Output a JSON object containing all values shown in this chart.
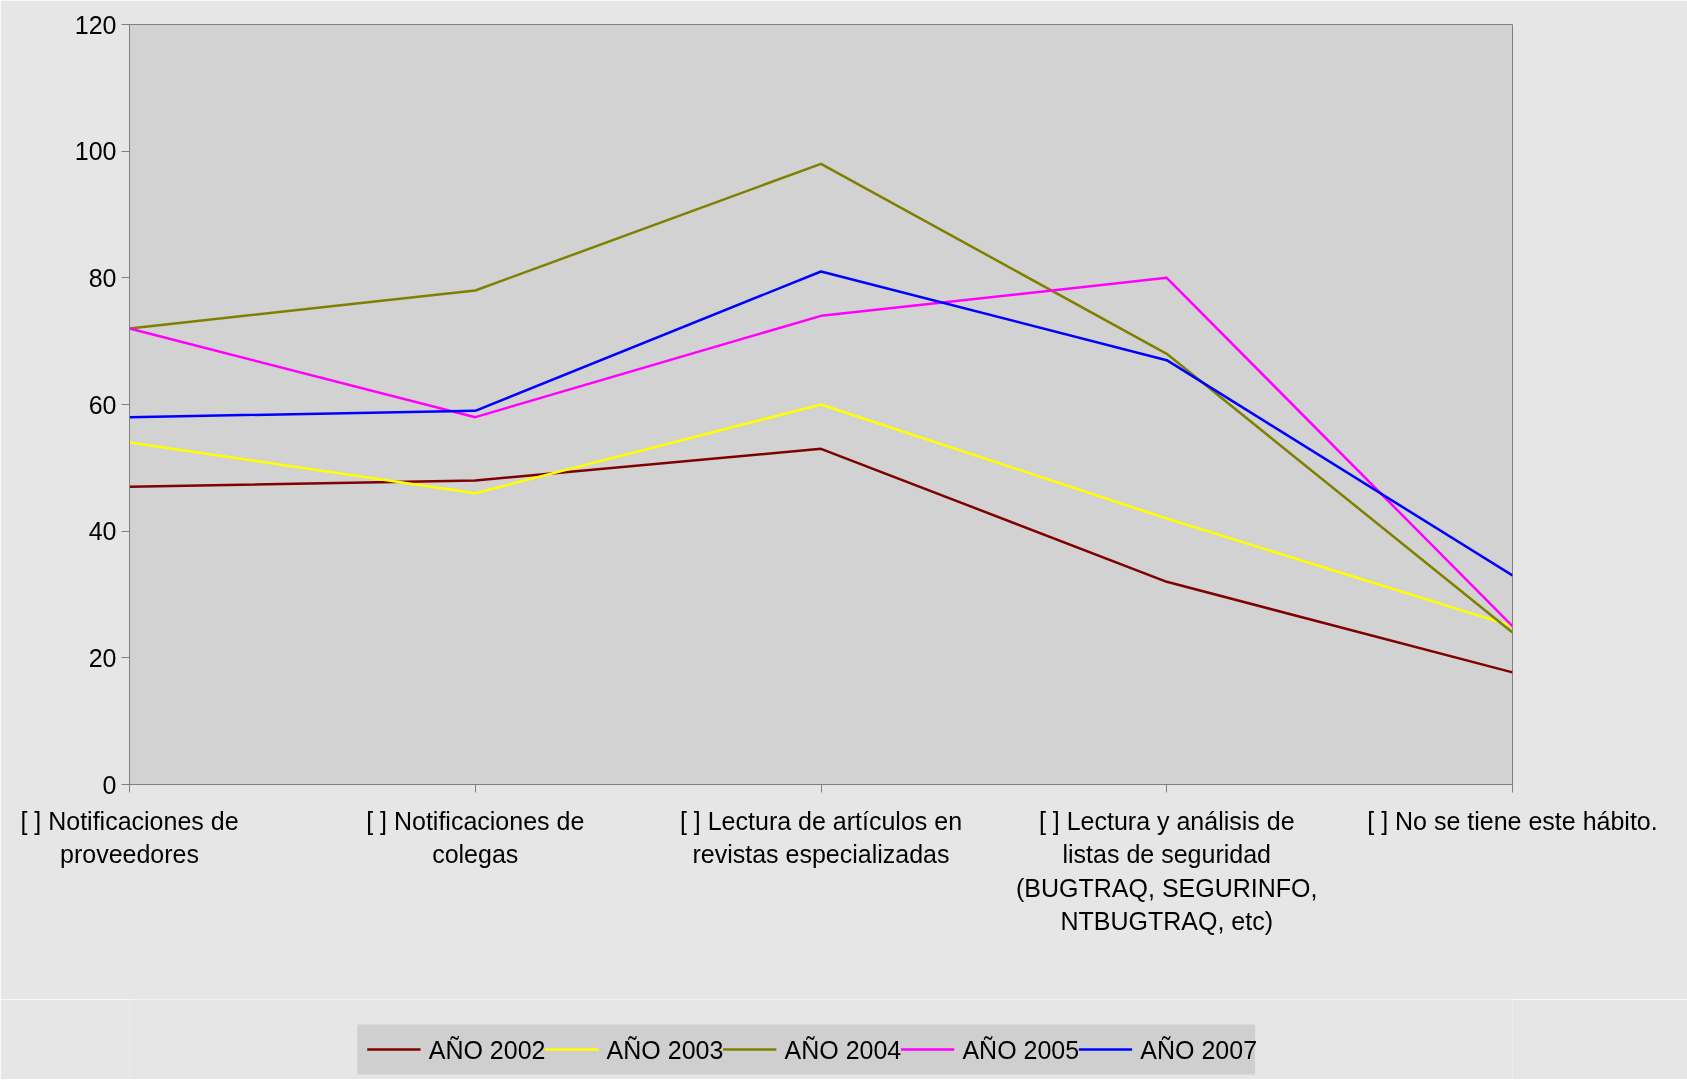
{
  "chart_data": {
    "type": "line",
    "categories": [
      "[ ] Notificaciones de proveedores",
      "[ ] Notificaciones de colegas",
      "[ ] Lectura de artículos en revistas especializadas",
      "[ ] Lectura y análisis de listas de seguridad (BUGTRAQ, SEGURINFO, NTBUGTRAQ, etc)",
      "[ ] No se tiene este hábito."
    ],
    "series": [
      {
        "name": "AÑO 2002",
        "color": "#800000",
        "values": [
          47,
          48,
          53,
          32,
          17.7
        ]
      },
      {
        "name": "AÑO 2003",
        "color": "#ffff00",
        "values": [
          54,
          46,
          60,
          42,
          25
        ]
      },
      {
        "name": "AÑO 2004",
        "color": "#808000",
        "values": [
          72,
          78,
          98,
          68,
          24
        ]
      },
      {
        "name": "AÑO 2005",
        "color": "#ff00ff",
        "values": [
          72,
          58,
          74,
          80,
          25
        ]
      },
      {
        "name": "AÑO 2007",
        "color": "#0000ff",
        "values": [
          58,
          59,
          81,
          67,
          33
        ]
      }
    ],
    "ylim": [
      0,
      120
    ],
    "yticks": [
      0,
      20,
      40,
      60,
      80,
      100,
      120
    ],
    "grid": false,
    "legend": "bottom",
    "marker": "none",
    "line_style": "solid"
  }
}
